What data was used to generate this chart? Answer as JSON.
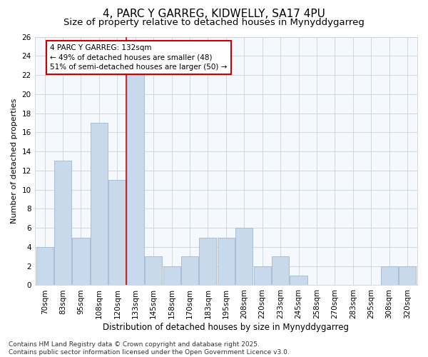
{
  "title1": "4, PARC Y GARREG, KIDWELLY, SA17 4PU",
  "title2": "Size of property relative to detached houses in Mynyddygarreg",
  "xlabel": "Distribution of detached houses by size in Mynyddygarreg",
  "ylabel": "Number of detached properties",
  "categories": [
    "70sqm",
    "83sqm",
    "95sqm",
    "108sqm",
    "120sqm",
    "133sqm",
    "145sqm",
    "158sqm",
    "170sqm",
    "183sqm",
    "195sqm",
    "208sqm",
    "220sqm",
    "233sqm",
    "245sqm",
    "258sqm",
    "270sqm",
    "283sqm",
    "295sqm",
    "308sqm",
    "320sqm"
  ],
  "values": [
    4,
    13,
    5,
    17,
    11,
    22,
    3,
    2,
    3,
    5,
    5,
    6,
    2,
    3,
    1,
    0,
    0,
    0,
    0,
    2,
    2
  ],
  "bar_color": "#c8d9eb",
  "bar_edge_color": "#a0b8d0",
  "highlight_index": 5,
  "highlight_line_color": "#cc0000",
  "annotation_text": "4 PARC Y GARREG: 132sqm\n← 49% of detached houses are smaller (48)\n51% of semi-detached houses are larger (50) →",
  "annotation_box_color": "#ffffff",
  "annotation_box_edge": "#cc0000",
  "ylim": [
    0,
    26
  ],
  "yticks": [
    0,
    2,
    4,
    6,
    8,
    10,
    12,
    14,
    16,
    18,
    20,
    22,
    24,
    26
  ],
  "footer_text": "Contains HM Land Registry data © Crown copyright and database right 2025.\nContains public sector information licensed under the Open Government Licence v3.0.",
  "bg_color": "#ffffff",
  "plot_bg_color": "#f5f8fc",
  "grid_color": "#c8d4e0",
  "title1_fontsize": 11,
  "title2_fontsize": 9.5,
  "xlabel_fontsize": 8.5,
  "ylabel_fontsize": 8,
  "tick_fontsize": 7.5,
  "footer_fontsize": 6.5,
  "ann_fontsize": 7.5
}
